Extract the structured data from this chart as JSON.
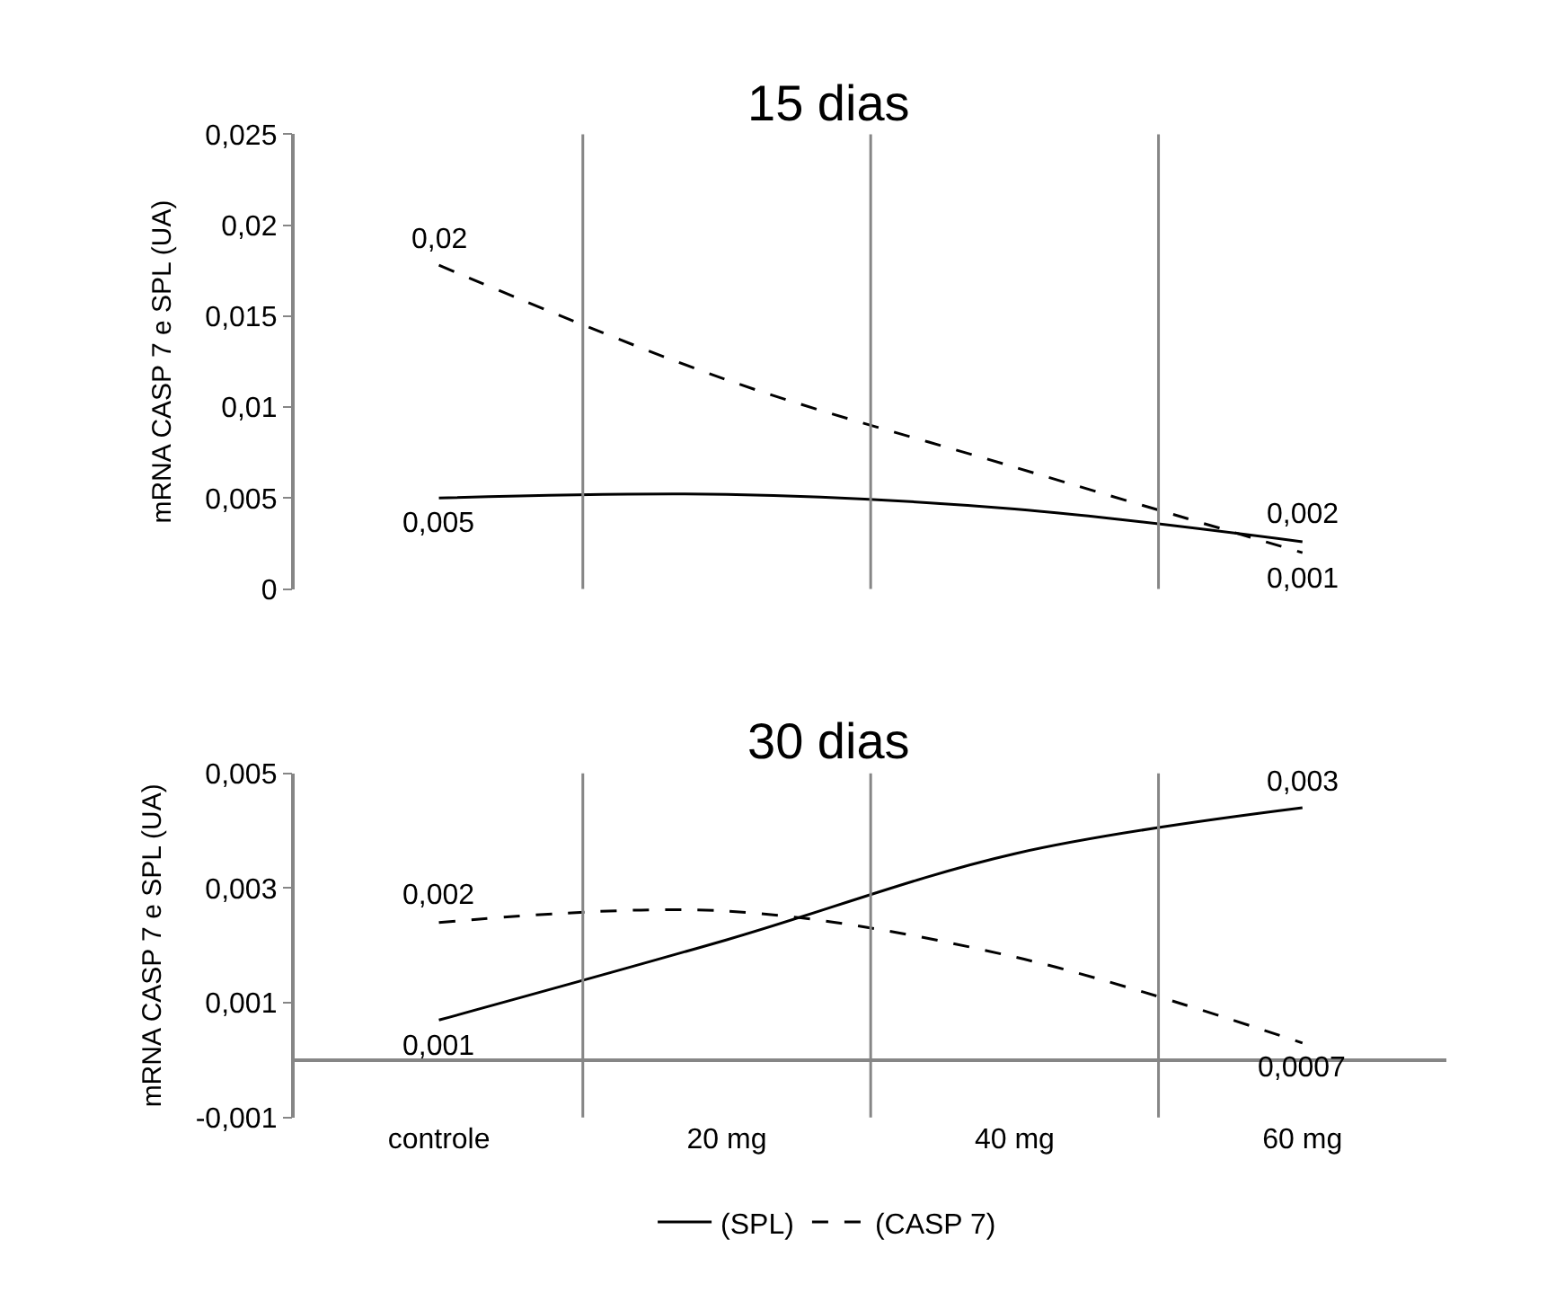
{
  "chart_data": [
    {
      "type": "line",
      "title": "15 dias",
      "ylabel": "mRNA CASP 7 e SPL (UA)",
      "categories": [
        "controle",
        "20 mg",
        "40 mg",
        "60 mg"
      ],
      "ylim": [
        0,
        0.025
      ],
      "yticks": [
        0,
        {
          "value": 0.005,
          "label": "0,005"
        },
        {
          "value": 0.01,
          "label": "0,01"
        },
        {
          "value": 0.015,
          "label": "0,015"
        },
        {
          "value": 0.02,
          "label": "0,02"
        },
        {
          "value": 0.025,
          "label": "0,025"
        }
      ],
      "grid": "x",
      "tick_labels": "y",
      "marker": "none",
      "legend": "bottom",
      "annotations": [
        {
          "text": "0,005",
          "x": "controle",
          "y": 0.005
        },
        {
          "text": "0,02",
          "x": "controle",
          "y": 0.0178
        },
        {
          "text": "0,002",
          "x": "60 mg",
          "y": 0.0026
        },
        {
          "text": "0,001",
          "x": "60 mg",
          "y": 0.002
        }
      ],
      "series": [
        {
          "name": "(SPL)",
          "color": "#000000",
          "line_style": "solid",
          "values": [
            0.005,
            0.0052,
            0.0044,
            0.0026
          ]
        },
        {
          "name": "(CASP 7)",
          "color": "#000000",
          "line_style": "dashed",
          "values": [
            0.0178,
            0.0115,
            0.0067,
            0.002
          ]
        }
      ]
    },
    {
      "type": "line",
      "title": "30 dias",
      "ylabel": "mRNA CASP 7 e SPL (UA)",
      "categories": [
        "controle",
        "20 mg",
        "40 mg",
        "60 mg"
      ],
      "ylim": [
        -0.001,
        0.005
      ],
      "yticks": [
        {
          "value": -0.001,
          "label": "-0,001"
        },
        {
          "value": 0.001,
          "label": "0,001"
        },
        {
          "value": 0.003,
          "label": "0,003"
        },
        {
          "value": 0.005,
          "label": "0,005"
        }
      ],
      "grid": "x",
      "legend": "bottom",
      "marker": "none",
      "annotations": [
        {
          "text": "0,001",
          "x": "controle",
          "y": 0.0007
        },
        {
          "text": "0,002",
          "x": "controle",
          "y": 0.0024
        },
        {
          "text": "0,003",
          "x": "60 mg",
          "y": 0.0044
        },
        {
          "text": "0,0007",
          "x": "60 mg",
          "y": 0.0003
        }
      ],
      "series": [
        {
          "name": "(SPL)",
          "color": "#000000",
          "line_style": "solid",
          "values": [
            0.0007,
            0.0021,
            0.0036,
            0.0044
          ]
        },
        {
          "name": "(CASP 7)",
          "color": "#000000",
          "line_style": "dashed",
          "values": [
            0.0024,
            0.0026,
            0.0018,
            0.0003
          ]
        }
      ]
    }
  ]
}
